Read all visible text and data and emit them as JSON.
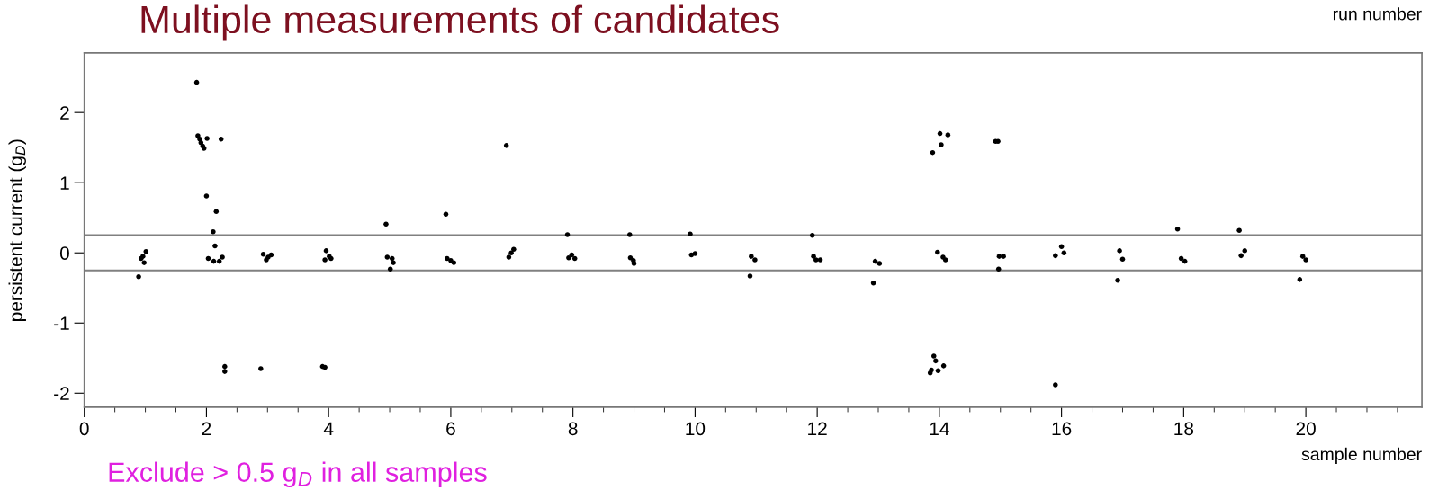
{
  "chart_data": {
    "type": "scatter",
    "title": "Multiple measurements of candidates",
    "xlabel": "sample number",
    "ylabel": "persistent current (g$_{D}$)",
    "x2label": "run number",
    "annotations": [
      "Exclude > 0.5 g$_{D}$ in all samples"
    ],
    "xlim": [
      0,
      21.9
    ],
    "xticks": [
      0,
      2,
      4,
      6,
      8,
      10,
      12,
      14,
      16,
      18,
      20
    ],
    "ylim": [
      -2.2,
      2.85
    ],
    "yticks": [
      -2,
      -1,
      0,
      1,
      2
    ],
    "ref_lines": [
      {
        "axis": "y",
        "value": 0.25,
        "label": null,
        "color": "#808080"
      },
      {
        "axis": "y",
        "value": -0.25,
        "label": null,
        "color": "#808080"
      }
    ],
    "grid": false,
    "marker": "circle",
    "series": [
      {
        "color": "#000000",
        "x": [
          0.89,
          1.01,
          0.93,
          0.98,
          0.96,
          1.84,
          1.86,
          1.89,
          1.91,
          1.94,
          1.96,
          2.01,
          2.24,
          2.0,
          2.16,
          2.11,
          2.14,
          2.03,
          2.12,
          2.21,
          2.26,
          2.3,
          2.3,
          2.89,
          2.93,
          3.01,
          3.06,
          2.98,
          3.96,
          4.01,
          3.94,
          4.04,
          3.9,
          3.94,
          4.94,
          4.96,
          5.04,
          5.06,
          5.01,
          5.92,
          5.94,
          6.0,
          6.05,
          6.91,
          6.95,
          6.99,
          7.03,
          7.91,
          7.93,
          7.98,
          8.03,
          8.93,
          8.94,
          8.99,
          9.0,
          9.92,
          9.94,
          10.0,
          10.9,
          10.92,
          10.98,
          11.92,
          11.94,
          11.98,
          12.05,
          12.92,
          12.95,
          13.02,
          14.01,
          14.14,
          14.03,
          13.89,
          14.92,
          14.96,
          13.97,
          14.06,
          14.1,
          13.91,
          13.94,
          13.85,
          13.87,
          13.98,
          14.07,
          14.98,
          15.05,
          14.97,
          16.0,
          16.04,
          15.9,
          15.9,
          16.95,
          17.0,
          16.92,
          17.9,
          17.96,
          18.02,
          18.91,
          18.94,
          19.0,
          19.95,
          20.0,
          19.9
        ],
        "values": [
          -0.34,
          0.02,
          -0.08,
          -0.14,
          -0.05,
          2.43,
          1.67,
          1.62,
          1.57,
          1.52,
          1.49,
          1.63,
          1.62,
          0.81,
          0.59,
          0.3,
          0.1,
          -0.08,
          -0.12,
          -0.12,
          -0.06,
          -1.62,
          -1.69,
          -1.65,
          -0.02,
          -0.06,
          -0.03,
          -0.1,
          0.03,
          -0.05,
          -0.1,
          -0.08,
          -1.62,
          -1.63,
          0.41,
          -0.06,
          -0.08,
          -0.14,
          -0.23,
          0.55,
          -0.08,
          -0.11,
          -0.14,
          1.53,
          -0.06,
          0.0,
          0.05,
          0.26,
          -0.07,
          -0.03,
          -0.08,
          0.26,
          -0.07,
          -0.11,
          -0.15,
          0.27,
          -0.03,
          -0.01,
          -0.33,
          -0.05,
          -0.1,
          0.25,
          -0.05,
          -0.1,
          -0.1,
          -0.43,
          -0.12,
          -0.15,
          1.7,
          1.68,
          1.54,
          1.43,
          1.59,
          1.59,
          0.01,
          -0.06,
          -0.1,
          -1.47,
          -1.54,
          -1.71,
          -1.67,
          -1.68,
          -1.61,
          -0.05,
          -0.05,
          -0.23,
          0.09,
          0.0,
          -0.04,
          -1.88,
          0.03,
          -0.09,
          -0.39,
          0.34,
          -0.08,
          -0.12,
          0.32,
          -0.04,
          0.03,
          -0.05,
          -0.1,
          -0.38
        ]
      }
    ]
  }
}
